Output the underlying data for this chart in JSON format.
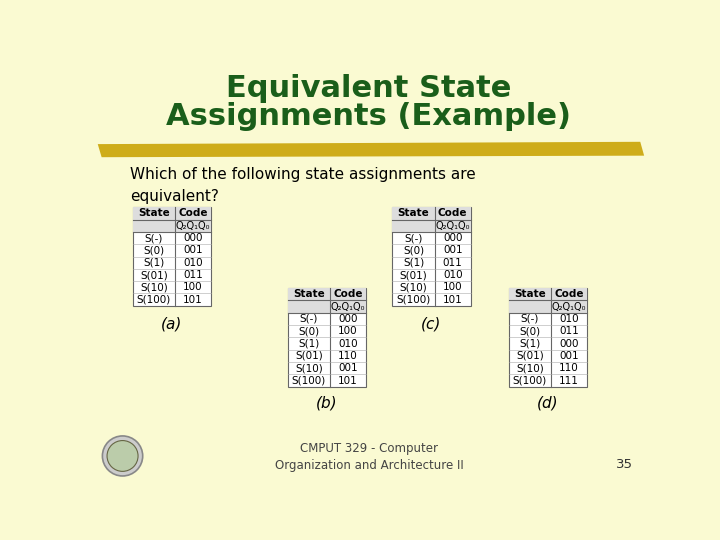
{
  "title_line1": "Equivalent State",
  "title_line2": "Assignments (Example)",
  "subtitle": "Which of the following state assignments are\nequivalent?",
  "bg_color": "#FAFAD2",
  "title_color": "#1a5e1a",
  "text_color": "#000000",
  "highlight_color": "#C8A200",
  "table_a": {
    "states": [
      "S(-)",
      "S(0)",
      "S(1)",
      "S(01)",
      "S(10)",
      "S(100)"
    ],
    "codes": [
      "000",
      "001",
      "010",
      "011",
      "100",
      "101"
    ],
    "label": "(a)",
    "sub_header": "Q₂Q₁Q₀"
  },
  "table_b": {
    "states": [
      "S(-)",
      "S(0)",
      "S(1)",
      "S(01)",
      "S(10)",
      "S(100)"
    ],
    "codes": [
      "000",
      "100",
      "010",
      "110",
      "001",
      "101"
    ],
    "label": "(b)",
    "sub_header": "Q₂Q₁Q₀"
  },
  "table_c": {
    "states": [
      "S(-)",
      "S(0)",
      "S(1)",
      "S(01)",
      "S(10)",
      "S(100)"
    ],
    "codes": [
      "000",
      "001",
      "011",
      "010",
      "100",
      "101"
    ],
    "label": "(c)",
    "sub_header": "Q₂Q₁Q₀"
  },
  "table_d": {
    "states": [
      "S(-)",
      "S(0)",
      "S(1)",
      "S(01)",
      "S(10)",
      "S(100)"
    ],
    "codes": [
      "010",
      "011",
      "000",
      "001",
      "110",
      "111"
    ],
    "label": "(d)",
    "sub_header": "Q₂Q₁Q₀"
  },
  "footer": "CMPUT 329 - Computer\nOrganization and Architecture II",
  "page_num": "35"
}
